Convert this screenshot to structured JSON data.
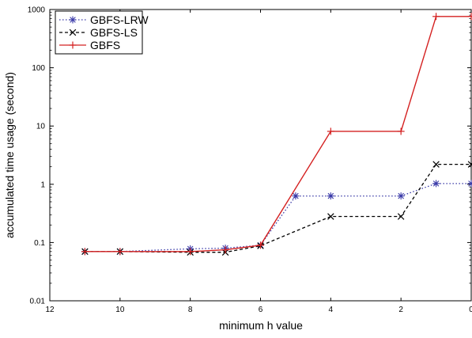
{
  "chart_data": {
    "type": "line",
    "xlabel": "minimum h value",
    "ylabel": "accumulated time usage (second)",
    "xlim": [
      12,
      0
    ],
    "ylim": [
      0.01,
      1000
    ],
    "yscale": "log",
    "x_reversed": true,
    "x_ticks": [
      12,
      10,
      8,
      6,
      4,
      2,
      0
    ],
    "x_tick_labels": [
      "12",
      "10",
      "8",
      "6",
      "4",
      "2",
      "0"
    ],
    "y_ticks": [
      0.01,
      0.1,
      1,
      10,
      100,
      1000
    ],
    "y_tick_labels": [
      "0.01",
      "0.1",
      "1",
      "10",
      "100",
      "1000"
    ],
    "grid": false,
    "legend_position": "top-left",
    "step_plot": true,
    "series": [
      {
        "name": "GBFS-LRW",
        "color": "#3a3aa8",
        "line_style": "dotted",
        "marker": "asterisk",
        "x": [
          11,
          10,
          8,
          7,
          6,
          5,
          4,
          2,
          1,
          0
        ],
        "y": [
          0.07,
          0.07,
          0.078,
          0.08,
          0.09,
          0.63,
          0.63,
          0.63,
          1.03,
          1.03
        ]
      },
      {
        "name": "GBFS-LS",
        "color": "#000000",
        "line_style": "dashed",
        "marker": "x",
        "x": [
          11,
          10,
          8,
          7,
          6,
          4,
          2,
          1,
          0
        ],
        "y": [
          0.07,
          0.07,
          0.068,
          0.068,
          0.088,
          0.28,
          0.28,
          2.2,
          2.2
        ]
      },
      {
        "name": "GBFS",
        "color": "#d42020",
        "line_style": "solid",
        "marker": "plus",
        "x": [
          11,
          10,
          8,
          7,
          6,
          4,
          2,
          1,
          0
        ],
        "y": [
          0.07,
          0.07,
          0.07,
          0.075,
          0.09,
          8.1,
          8.1,
          760,
          760
        ]
      }
    ]
  }
}
